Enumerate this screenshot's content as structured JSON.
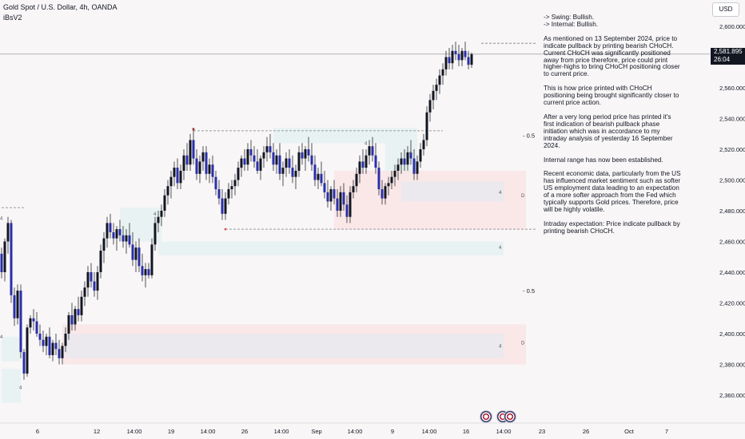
{
  "header": {
    "title": "Gold Spot / U.S. Dollar, 4h, OANDA",
    "indicator": "iBsV2"
  },
  "currency_button": "USD",
  "price_tag": {
    "price": "2,581.895",
    "countdown": "26:04"
  },
  "notes": {
    "swing": "-> Swing:  Bullish.",
    "internal": "-> Internal:  Bullish.",
    "paragraphs": [
      "As mentioned on 13 September 2024, price to indicate pullback by printing bearish CHoCH. Current CHoCH was significantly positioned away from price therefore, price could print higher-highs to bring CHoCH positioning closer to current price.",
      "This is how price printed with CHoCH positioning being brought significantly closer to current price action.",
      "After a very long period price has printed it's first indication of bearish pullback phase initiation which was in accordance to my intraday analysis of yesterday 16 September 2024.",
      "Internal range has now been established.",
      "Recent economic data, particularly from the US has influenced market sentiment such as softer US employment data leading to an expectation of a more softer approach from the Fed which typically supports Gold prices. Therefore, price will be highly volatile.",
      "Intraday expectation: Price indicate pullback by printing bearish CHoCH."
    ]
  },
  "colors": {
    "up": "#131722",
    "down": "#2a2fa8",
    "wick": "#2b2b2b",
    "demand_zone": "#e6f2f1",
    "supply_zone": "#f9e5e5",
    "internal_zone": "#e9e9ee",
    "dashed_line": "#7d7f86",
    "red_dot": "#d9534f"
  },
  "chart_data": {
    "type": "candlestick",
    "symbol": "Gold Spot / U.S. Dollar",
    "timeframe": "4h",
    "y_ticks": [
      "2,360.000",
      "2,380.000",
      "2,400.000",
      "2,420.000",
      "2,440.000",
      "2,460.000",
      "2,480.000",
      "2,500.000",
      "2,520.000",
      "2,540.000",
      "2,560.000",
      "2,580.000",
      "2,600.000"
    ],
    "ylim": [
      2352,
      2610
    ],
    "x_ticks": [
      "6",
      "12",
      "14:00",
      "19",
      "14:00",
      "26",
      "14:00",
      "Sep",
      "14:00",
      "9",
      "14:00",
      "16",
      "14:00",
      "23",
      "26",
      "Oct",
      "7"
    ],
    "current_price": 2581.895,
    "zones": [
      {
        "kind": "demand",
        "from": 0,
        "to": 6,
        "low": 2382,
        "high": 2398
      },
      {
        "kind": "demand",
        "from": 0,
        "to": 6,
        "low": 2355,
        "high": 2377
      },
      {
        "kind": "demand",
        "from": 37,
        "to": 50,
        "low": 2460,
        "high": 2482
      },
      {
        "kind": "demand",
        "from": 49,
        "to": 157,
        "low": 2451,
        "high": 2460
      },
      {
        "kind": "demand",
        "from": 85,
        "to": 130,
        "low": 2524,
        "high": 2534
      },
      {
        "kind": "demand",
        "from": 120,
        "to": 130,
        "low": 2502,
        "high": 2524
      },
      {
        "kind": "supply",
        "from": 104,
        "to": 164,
        "low": 2468,
        "high": 2506
      },
      {
        "kind": "internal",
        "from": 125,
        "to": 157,
        "low": 2486,
        "high": 2499
      },
      {
        "kind": "supply",
        "from": 19,
        "to": 164,
        "low": 2380,
        "high": 2406
      },
      {
        "kind": "internal",
        "from": 20,
        "to": 157,
        "low": 2384,
        "high": 2400
      }
    ],
    "zone_labels": [
      {
        "text": "4",
        "x": 0,
        "y": 2475
      },
      {
        "text": "4",
        "x": 0,
        "y": 2398
      },
      {
        "text": "4",
        "x": 6,
        "y": 2365
      },
      {
        "text": "4",
        "x": 48,
        "y": 2478
      },
      {
        "text": "4",
        "x": 114,
        "y": 2524
      },
      {
        "text": "4",
        "x": 128,
        "y": 2518
      },
      {
        "text": "4",
        "x": 156,
        "y": 2456
      },
      {
        "text": "4",
        "x": 156,
        "y": 2392
      },
      {
        "text": "4",
        "x": 156,
        "y": 2492
      },
      {
        "text": "D",
        "x": 163,
        "y": 2490
      },
      {
        "text": "D",
        "x": 163,
        "y": 2394
      }
    ],
    "level_lines": [
      {
        "price": 2482,
        "from": 0,
        "to": 7
      },
      {
        "price": 2532,
        "from": 60,
        "to": 138
      },
      {
        "price": 2468,
        "from": 70,
        "to": 167
      },
      {
        "price": 2589,
        "from": 150,
        "to": 167
      }
    ],
    "level_labels": [
      {
        "text": "- 0.5",
        "price": 2529
      },
      {
        "text": "- 0.5",
        "price": 2428
      }
    ],
    "candles": [
      [
        2452,
        2456,
        2436,
        2440
      ],
      [
        2440,
        2462,
        2434,
        2460
      ],
      [
        2460,
        2476,
        2452,
        2472
      ],
      [
        2472,
        2474,
        2420,
        2425
      ],
      [
        2425,
        2430,
        2405,
        2410
      ],
      [
        2410,
        2432,
        2406,
        2428
      ],
      [
        2428,
        2432,
        2384,
        2388
      ],
      [
        2388,
        2390,
        2370,
        2374
      ],
      [
        2374,
        2406,
        2372,
        2404
      ],
      [
        2404,
        2412,
        2400,
        2410
      ],
      [
        2410,
        2416,
        2402,
        2408
      ],
      [
        2408,
        2414,
        2398,
        2400
      ],
      [
        2400,
        2406,
        2392,
        2396
      ],
      [
        2396,
        2402,
        2388,
        2392
      ],
      [
        2392,
        2400,
        2386,
        2398
      ],
      [
        2398,
        2404,
        2384,
        2386
      ],
      [
        2386,
        2396,
        2382,
        2394
      ],
      [
        2394,
        2400,
        2386,
        2390
      ],
      [
        2390,
        2396,
        2380,
        2384
      ],
      [
        2384,
        2394,
        2380,
        2392
      ],
      [
        2392,
        2404,
        2388,
        2400
      ],
      [
        2400,
        2414,
        2396,
        2412
      ],
      [
        2412,
        2420,
        2402,
        2406
      ],
      [
        2406,
        2418,
        2402,
        2416
      ],
      [
        2416,
        2424,
        2408,
        2412
      ],
      [
        2412,
        2428,
        2408,
        2424
      ],
      [
        2424,
        2434,
        2418,
        2430
      ],
      [
        2430,
        2444,
        2424,
        2440
      ],
      [
        2440,
        2446,
        2430,
        2434
      ],
      [
        2434,
        2440,
        2424,
        2428
      ],
      [
        2428,
        2444,
        2422,
        2440
      ],
      [
        2440,
        2458,
        2436,
        2454
      ],
      [
        2454,
        2466,
        2446,
        2462
      ],
      [
        2462,
        2476,
        2456,
        2472
      ],
      [
        2472,
        2478,
        2462,
        2466
      ],
      [
        2466,
        2472,
        2458,
        2462
      ],
      [
        2462,
        2470,
        2454,
        2468
      ],
      [
        2468,
        2474,
        2460,
        2464
      ],
      [
        2464,
        2470,
        2456,
        2460
      ],
      [
        2460,
        2468,
        2452,
        2464
      ],
      [
        2464,
        2472,
        2456,
        2458
      ],
      [
        2458,
        2466,
        2444,
        2448
      ],
      [
        2448,
        2460,
        2440,
        2456
      ],
      [
        2456,
        2462,
        2440,
        2444
      ],
      [
        2444,
        2452,
        2434,
        2438
      ],
      [
        2438,
        2446,
        2430,
        2442
      ],
      [
        2442,
        2446,
        2436,
        2438
      ],
      [
        2438,
        2462,
        2436,
        2458
      ],
      [
        2458,
        2476,
        2454,
        2472
      ],
      [
        2472,
        2480,
        2466,
        2476
      ],
      [
        2476,
        2484,
        2470,
        2480
      ],
      [
        2480,
        2494,
        2476,
        2490
      ],
      [
        2490,
        2500,
        2484,
        2496
      ],
      [
        2496,
        2506,
        2488,
        2502
      ],
      [
        2502,
        2512,
        2496,
        2508
      ],
      [
        2508,
        2514,
        2494,
        2498
      ],
      [
        2498,
        2510,
        2494,
        2506
      ],
      [
        2506,
        2520,
        2500,
        2516
      ],
      [
        2516,
        2524,
        2506,
        2510
      ],
      [
        2510,
        2530,
        2506,
        2526
      ],
      [
        2526,
        2534,
        2510,
        2514
      ],
      [
        2514,
        2520,
        2500,
        2504
      ],
      [
        2504,
        2516,
        2498,
        2512
      ],
      [
        2512,
        2522,
        2506,
        2518
      ],
      [
        2518,
        2522,
        2500,
        2504
      ],
      [
        2504,
        2514,
        2498,
        2510
      ],
      [
        2510,
        2516,
        2498,
        2502
      ],
      [
        2502,
        2506,
        2490,
        2494
      ],
      [
        2494,
        2500,
        2484,
        2488
      ],
      [
        2488,
        2494,
        2474,
        2478
      ],
      [
        2478,
        2492,
        2474,
        2488
      ],
      [
        2488,
        2498,
        2484,
        2494
      ],
      [
        2494,
        2500,
        2488,
        2496
      ],
      [
        2496,
        2504,
        2490,
        2500
      ],
      [
        2500,
        2512,
        2496,
        2508
      ],
      [
        2508,
        2516,
        2502,
        2514
      ],
      [
        2514,
        2520,
        2506,
        2510
      ],
      [
        2510,
        2524,
        2506,
        2520
      ],
      [
        2520,
        2526,
        2512,
        2516
      ],
      [
        2516,
        2522,
        2508,
        2512
      ],
      [
        2512,
        2520,
        2504,
        2506
      ],
      [
        2506,
        2516,
        2500,
        2514
      ],
      [
        2514,
        2522,
        2508,
        2518
      ],
      [
        2518,
        2528,
        2512,
        2522
      ],
      [
        2522,
        2530,
        2514,
        2518
      ],
      [
        2518,
        2524,
        2506,
        2510
      ],
      [
        2510,
        2520,
        2504,
        2516
      ],
      [
        2516,
        2524,
        2500,
        2504
      ],
      [
        2504,
        2512,
        2496,
        2508
      ],
      [
        2508,
        2518,
        2502,
        2514
      ],
      [
        2514,
        2520,
        2504,
        2508
      ],
      [
        2508,
        2516,
        2498,
        2502
      ],
      [
        2502,
        2510,
        2494,
        2506
      ],
      [
        2506,
        2522,
        2502,
        2518
      ],
      [
        2518,
        2524,
        2510,
        2514
      ],
      [
        2514,
        2522,
        2506,
        2520
      ],
      [
        2520,
        2528,
        2512,
        2516
      ],
      [
        2516,
        2524,
        2506,
        2510
      ],
      [
        2510,
        2516,
        2496,
        2500
      ],
      [
        2500,
        2508,
        2494,
        2504
      ],
      [
        2504,
        2512,
        2496,
        2498
      ],
      [
        2498,
        2506,
        2488,
        2492
      ],
      [
        2492,
        2500,
        2482,
        2486
      ],
      [
        2486,
        2496,
        2480,
        2494
      ],
      [
        2494,
        2500,
        2484,
        2488
      ],
      [
        2488,
        2494,
        2476,
        2480
      ],
      [
        2480,
        2496,
        2476,
        2492
      ],
      [
        2492,
        2498,
        2480,
        2484
      ],
      [
        2484,
        2490,
        2472,
        2476
      ],
      [
        2476,
        2496,
        2472,
        2492
      ],
      [
        2492,
        2500,
        2488,
        2496
      ],
      [
        2496,
        2508,
        2492,
        2504
      ],
      [
        2504,
        2516,
        2498,
        2512
      ],
      [
        2512,
        2520,
        2504,
        2508
      ],
      [
        2508,
        2520,
        2504,
        2516
      ],
      [
        2516,
        2526,
        2510,
        2522
      ],
      [
        2522,
        2528,
        2512,
        2516
      ],
      [
        2516,
        2524,
        2504,
        2508
      ],
      [
        2508,
        2512,
        2490,
        2494
      ],
      [
        2494,
        2500,
        2484,
        2488
      ],
      [
        2488,
        2498,
        2484,
        2496
      ],
      [
        2496,
        2502,
        2490,
        2498
      ],
      [
        2498,
        2506,
        2494,
        2502
      ],
      [
        2502,
        2510,
        2496,
        2506
      ],
      [
        2506,
        2514,
        2500,
        2510
      ],
      [
        2510,
        2518,
        2504,
        2514
      ],
      [
        2514,
        2520,
        2506,
        2510
      ],
      [
        2510,
        2522,
        2506,
        2518
      ],
      [
        2518,
        2526,
        2510,
        2514
      ],
      [
        2514,
        2520,
        2500,
        2504
      ],
      [
        2504,
        2516,
        2500,
        2512
      ],
      [
        2512,
        2524,
        2508,
        2520
      ],
      [
        2520,
        2530,
        2516,
        2526
      ],
      [
        2526,
        2548,
        2522,
        2544
      ],
      [
        2544,
        2556,
        2538,
        2552
      ],
      [
        2552,
        2562,
        2546,
        2558
      ],
      [
        2558,
        2566,
        2552,
        2562
      ],
      [
        2562,
        2572,
        2556,
        2568
      ],
      [
        2568,
        2576,
        2562,
        2572
      ],
      [
        2572,
        2584,
        2568,
        2580
      ],
      [
        2580,
        2586,
        2572,
        2576
      ],
      [
        2576,
        2588,
        2572,
        2584
      ],
      [
        2584,
        2590,
        2578,
        2582
      ],
      [
        2582,
        2588,
        2574,
        2578
      ],
      [
        2578,
        2586,
        2574,
        2584
      ],
      [
        2584,
        2590,
        2578,
        2580
      ],
      [
        2580,
        2584,
        2572,
        2575
      ],
      [
        2575,
        2583,
        2573,
        2581.9
      ]
    ]
  }
}
